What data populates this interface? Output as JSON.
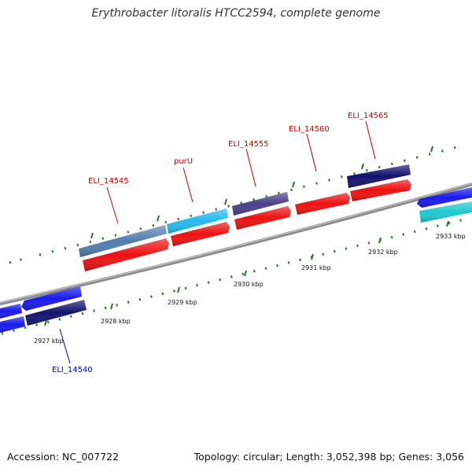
{
  "title": "Erythrobacter litoralis HTCC2594, complete genome",
  "footer": {
    "accession": "Accession: NC_007722",
    "summary": "Topology: circular; Length: 3,052,398 bp; Genes: 3,056"
  },
  "colors": {
    "backbone": "#8a8a8a",
    "tick": "#1a7a1a",
    "forward_label": "#cc0000",
    "reverse_label": "#0000cc",
    "cds_red": "#ee1111",
    "blue": "#1a1aee",
    "navy": "#12126e",
    "steel": "#4f7fb0",
    "sky": "#22bbee",
    "slate": "#4a3f8a",
    "cyan": "#1fc8d0"
  },
  "tick_labels": [
    {
      "text": "2927 kbp"
    },
    {
      "text": "2928 kbp"
    },
    {
      "text": "2929 kbp"
    },
    {
      "text": "2930 kbp"
    },
    {
      "text": "2931 kbp"
    },
    {
      "text": "2932 kbp"
    },
    {
      "text": "2933 kbp"
    }
  ],
  "gene_labels": [
    {
      "text": "ELI_14540",
      "strand": "reverse"
    },
    {
      "text": "ELI_14545",
      "strand": "forward"
    },
    {
      "text": "purU",
      "strand": "forward"
    },
    {
      "text": "ELI_14555",
      "strand": "forward"
    },
    {
      "text": "ELI_14560",
      "strand": "forward"
    },
    {
      "text": "ELI_14565",
      "strand": "forward"
    }
  ]
}
